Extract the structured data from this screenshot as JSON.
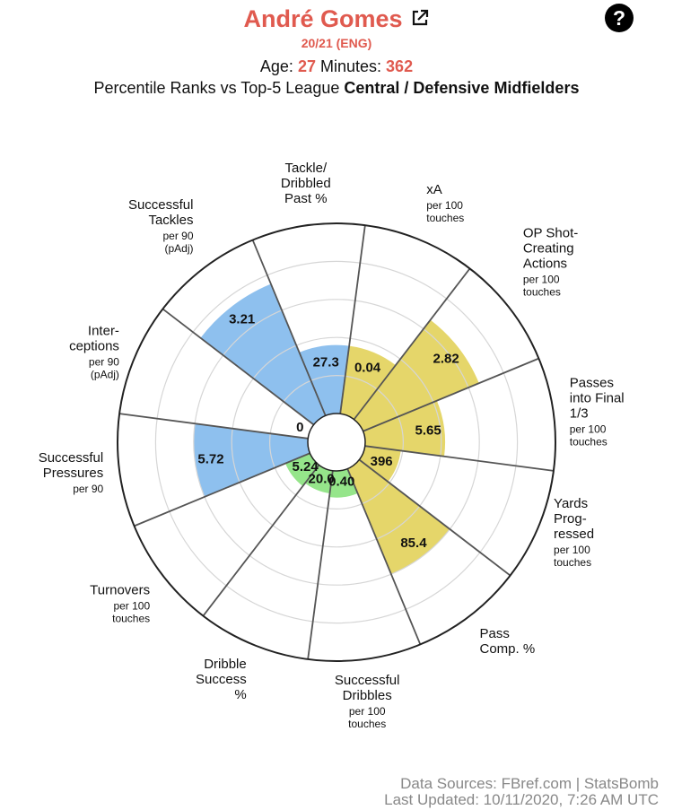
{
  "header": {
    "player_name": "André Gomes",
    "season": "20/21 (ENG)",
    "age_label": "Age:",
    "age": "27",
    "minutes_label": "Minutes:",
    "minutes": "362",
    "comparison_prefix": "Percentile Ranks vs Top-5 League",
    "position_group": "Central / Defensive Midfielders",
    "help_symbol": "?"
  },
  "colors": {
    "name": "#e05a4f",
    "attacking": "#e5d66a",
    "possession": "#8ec0ee",
    "defending": "#95e58a"
  },
  "chart_data": {
    "type": "radar",
    "scale": "percentile",
    "rlim": [
      0,
      100
    ],
    "start_angle_deg": -112.5,
    "metrics": [
      {
        "label": [
          "Tackle/",
          "Dribbled",
          "Past %"
        ],
        "sub": [],
        "value": "27.3",
        "percentile": 36,
        "group": "possession"
      },
      {
        "label": [
          "xA"
        ],
        "sub": [
          "per 100",
          "touches"
        ],
        "value": "0.04",
        "percentile": 36,
        "group": "attacking"
      },
      {
        "label": [
          "OP Shot-",
          "Creating",
          "Actions"
        ],
        "sub": [
          "per 100",
          "touches"
        ],
        "value": "2.82",
        "percentile": 66,
        "group": "attacking"
      },
      {
        "label": [
          "Passes",
          "into Final",
          "1/3"
        ],
        "sub": [
          "per 100",
          "touches"
        ],
        "value": "5.65",
        "percentile": 42,
        "group": "attacking"
      },
      {
        "label": [
          "Yards",
          "Prog-",
          "ressed"
        ],
        "sub": [
          "per 100",
          "touches"
        ],
        "value": "396",
        "percentile": 19,
        "group": "attacking"
      },
      {
        "label": [
          "Pass",
          "Comp. %"
        ],
        "sub": [],
        "value": "85.4",
        "percentile": 60,
        "group": "attacking"
      },
      {
        "label": [
          "Successful",
          "Dribbles"
        ],
        "sub": [
          "per 100",
          "touches"
        ],
        "value": "0.40",
        "percentile": 14,
        "group": "defending"
      },
      {
        "label": [
          "Dribble",
          "Success",
          "%"
        ],
        "sub": [],
        "value": "20.0",
        "percentile": 12,
        "group": "defending"
      },
      {
        "label": [
          "Turnovers"
        ],
        "sub": [
          "per 100",
          "touches"
        ],
        "value": "5.24",
        "percentile": 14,
        "group": "defending"
      },
      {
        "label": [
          "Successful",
          "Pressures"
        ],
        "sub": [
          "per 90"
        ],
        "value": "5.72",
        "percentile": 60,
        "group": "possession"
      },
      {
        "label": [
          "Inter-",
          "ceptions"
        ],
        "sub": [
          "per 90",
          "(pAdj)"
        ],
        "value": "0",
        "percentile": 0,
        "group": "possession"
      },
      {
        "label": [
          "Successful",
          "Tackles"
        ],
        "sub": [
          "per 90",
          "(pAdj)"
        ],
        "value": "3.21",
        "percentile": 75,
        "group": "possession"
      }
    ]
  },
  "footer": {
    "sources": "Data Sources: FBref.com | StatsBomb",
    "updated": "Last Updated: 10/11/2020, 7:26 AM UTC"
  }
}
